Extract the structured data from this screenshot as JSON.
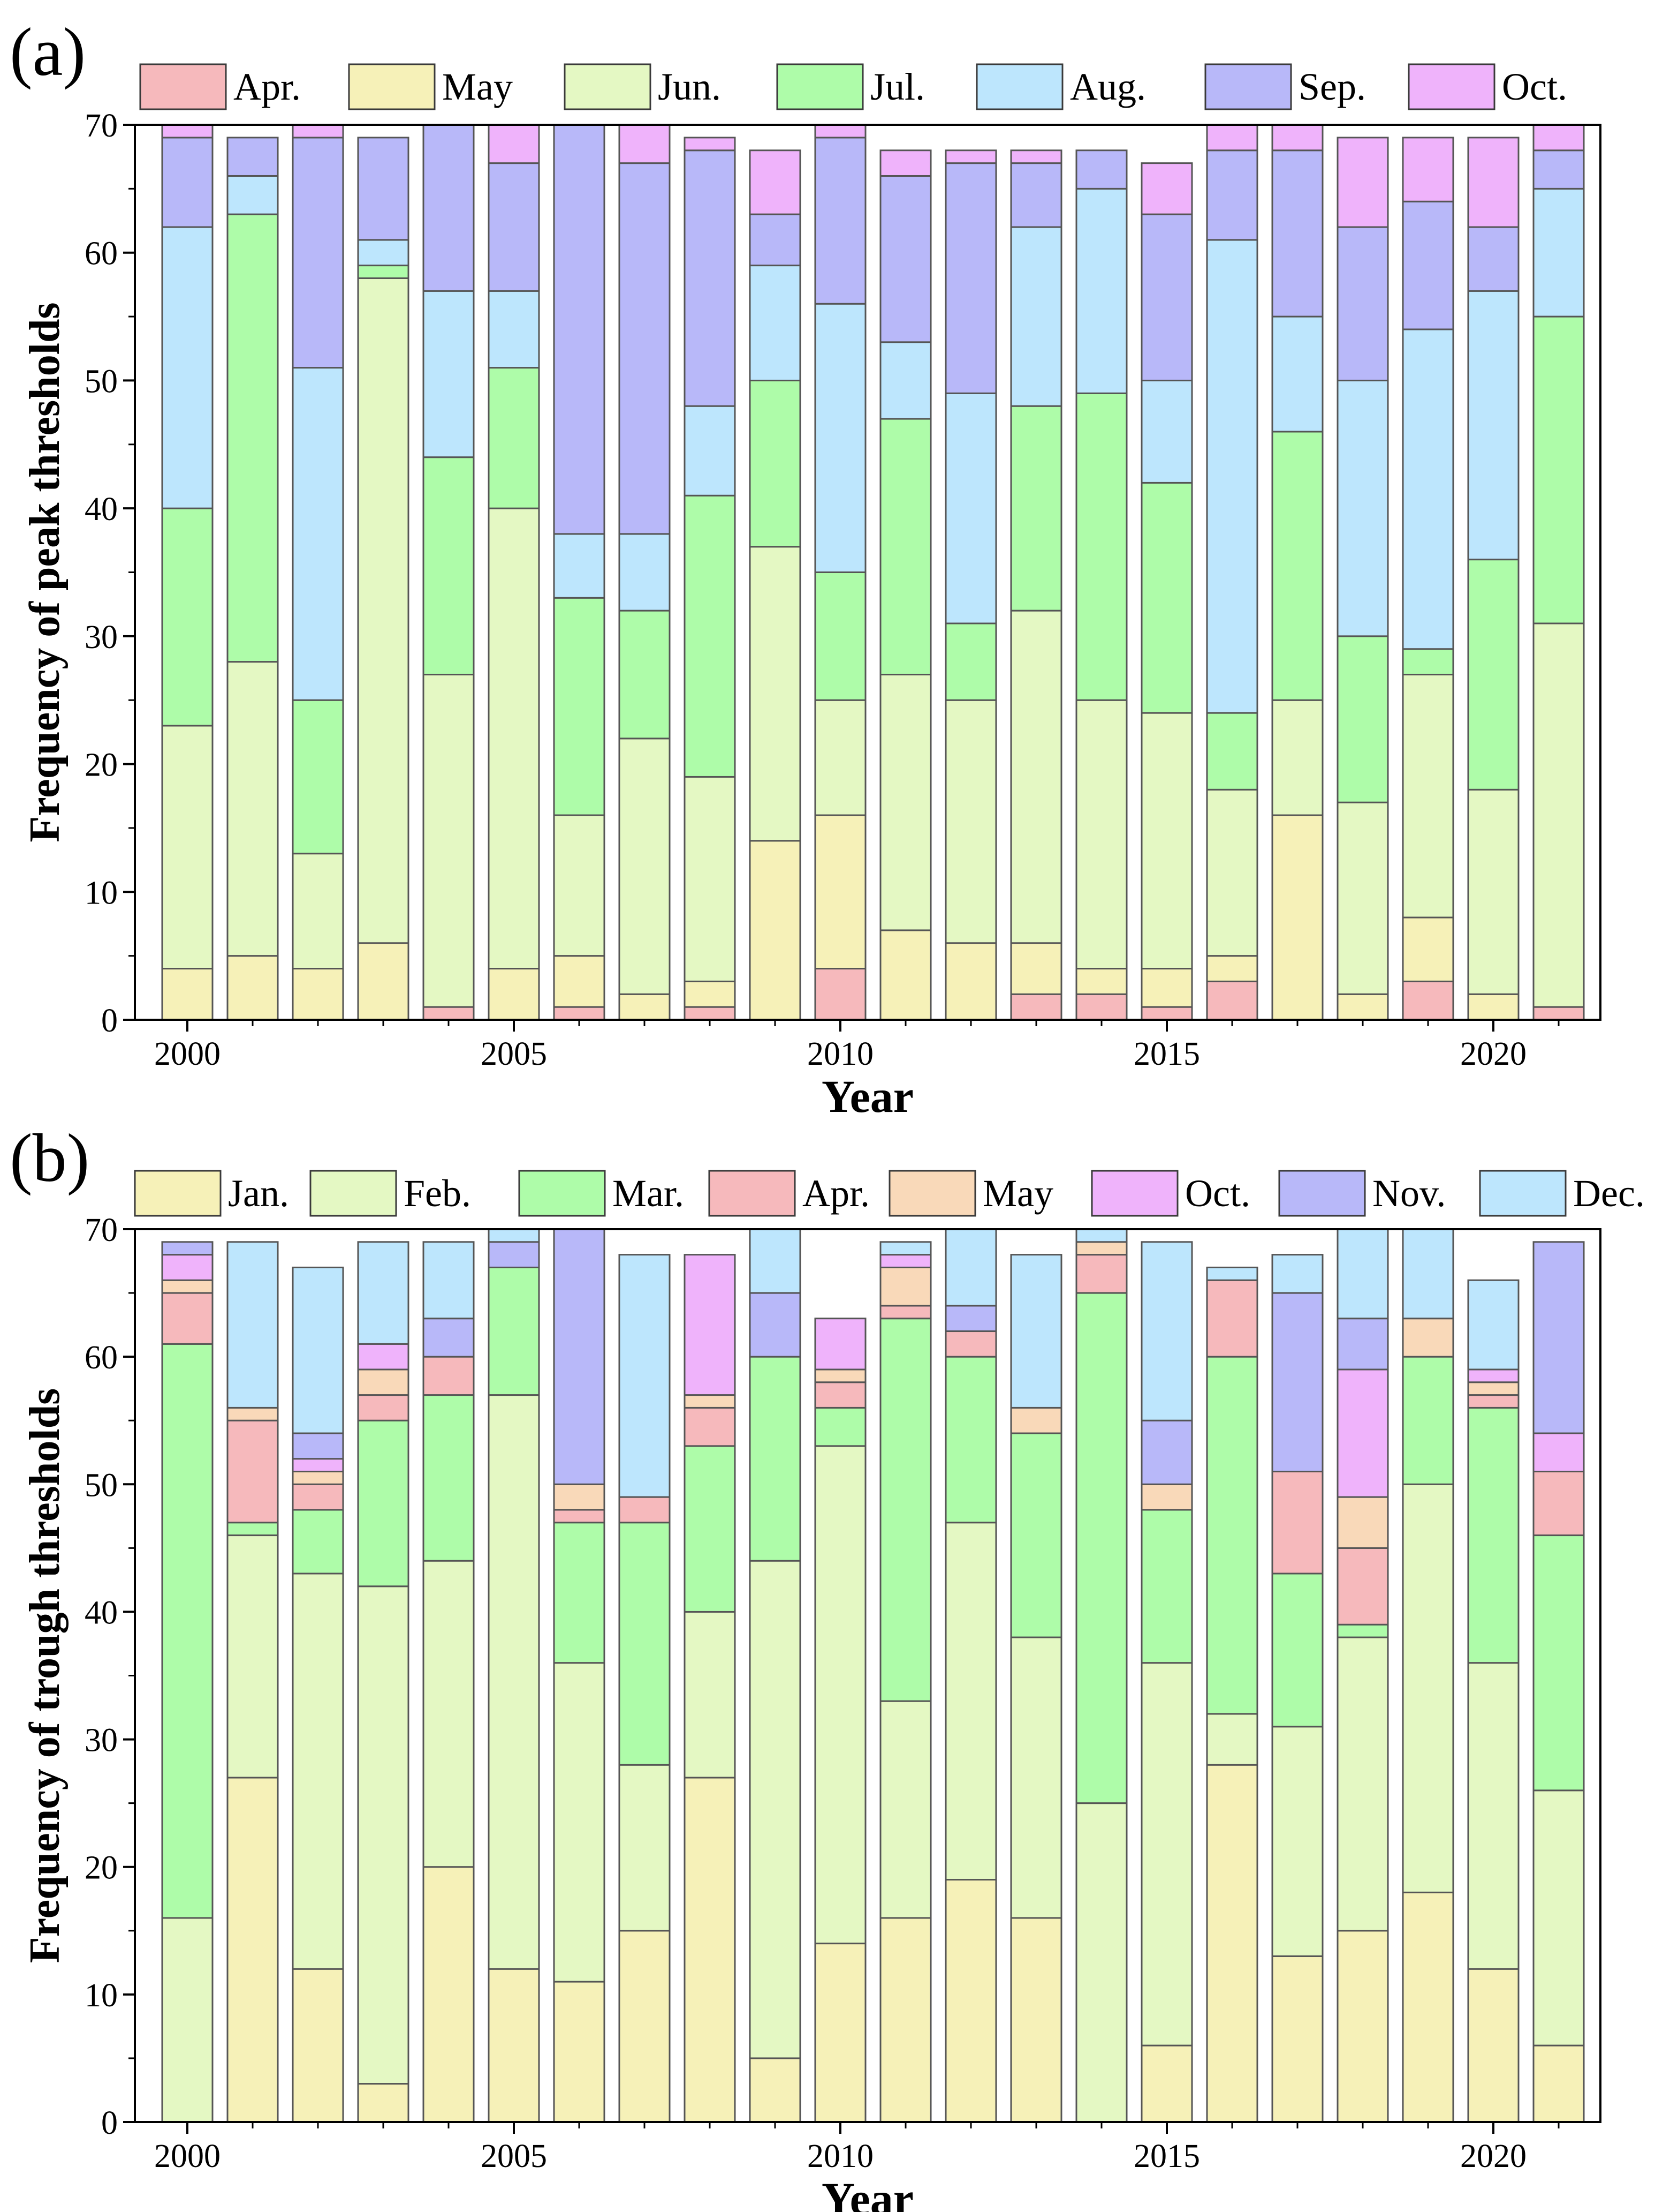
{
  "chart_data": [
    {
      "panel_label": "(a)",
      "type": "bar",
      "stacked": true,
      "xlabel": "Year",
      "ylabel": "Frequency of peak thresholds",
      "ylim": [
        0,
        70
      ],
      "yticks": [
        "0",
        "10",
        "20",
        "30",
        "40",
        "50",
        "60",
        "70"
      ],
      "xtick_labels": [
        "2000",
        "2005",
        "2010",
        "2015",
        "2020"
      ],
      "categories": [
        "2000",
        "2001",
        "2002",
        "2003",
        "2004",
        "2005",
        "2006",
        "2007",
        "2008",
        "2009",
        "2010",
        "2011",
        "2012",
        "2013",
        "2014",
        "2015",
        "2016",
        "2017",
        "2018",
        "2019",
        "2020",
        "2021"
      ],
      "legend_position": "top",
      "series": [
        {
          "name": "Apr.",
          "color": "#f6b9bc",
          "values": [
            0,
            0,
            0,
            0,
            1,
            0,
            1,
            0,
            1,
            0,
            4,
            0,
            0,
            2,
            2,
            1,
            3,
            0,
            0,
            3,
            0,
            1
          ]
        },
        {
          "name": "May",
          "color": "#f6f1b8",
          "values": [
            4,
            5,
            4,
            6,
            0,
            4,
            4,
            2,
            2,
            14,
            12,
            7,
            6,
            4,
            2,
            3,
            2,
            16,
            2,
            5,
            2,
            0
          ]
        },
        {
          "name": "Jun.",
          "color": "#e4f8c3",
          "values": [
            19,
            23,
            9,
            52,
            26,
            36,
            11,
            20,
            16,
            23,
            9,
            20,
            19,
            26,
            21,
            20,
            13,
            9,
            15,
            19,
            16,
            30
          ]
        },
        {
          "name": "Jul.",
          "color": "#aefca9",
          "values": [
            17,
            35,
            12,
            1,
            17,
            11,
            17,
            10,
            22,
            13,
            10,
            20,
            6,
            16,
            24,
            18,
            6,
            21,
            13,
            2,
            18,
            24
          ]
        },
        {
          "name": "Aug.",
          "color": "#bde6fd",
          "values": [
            22,
            3,
            26,
            2,
            13,
            6,
            5,
            6,
            7,
            9,
            21,
            6,
            18,
            14,
            16,
            8,
            37,
            9,
            20,
            25,
            21,
            10
          ]
        },
        {
          "name": "Sep.",
          "color": "#b8b8f9",
          "values": [
            7,
            3,
            18,
            8,
            13,
            10,
            32,
            29,
            20,
            4,
            13,
            13,
            18,
            5,
            3,
            13,
            7,
            13,
            12,
            10,
            5,
            3
          ]
        },
        {
          "name": "Oct.",
          "color": "#efb3fb",
          "values": [
            1,
            0,
            1,
            0,
            0,
            3,
            0,
            3,
            1,
            5,
            1,
            2,
            1,
            1,
            0,
            4,
            2,
            2,
            7,
            5,
            7,
            2
          ]
        }
      ]
    },
    {
      "panel_label": "(b)",
      "type": "bar",
      "stacked": true,
      "xlabel": "Year",
      "ylabel": "Frequency of trough thresholds",
      "ylim": [
        0,
        70
      ],
      "yticks": [
        "0",
        "10",
        "20",
        "30",
        "40",
        "50",
        "60",
        "70"
      ],
      "xtick_labels": [
        "2000",
        "2005",
        "2010",
        "2015",
        "2020"
      ],
      "categories": [
        "2000",
        "2001",
        "2002",
        "2003",
        "2004",
        "2005",
        "2006",
        "2007",
        "2008",
        "2009",
        "2010",
        "2011",
        "2012",
        "2013",
        "2014",
        "2015",
        "2016",
        "2017",
        "2018",
        "2019",
        "2020",
        "2021"
      ],
      "legend_position": "top",
      "series": [
        {
          "name": "Jan.",
          "color": "#f6f1b8",
          "values": [
            0,
            27,
            12,
            3,
            20,
            12,
            11,
            15,
            27,
            5,
            14,
            16,
            19,
            16,
            0,
            6,
            28,
            13,
            15,
            18,
            12,
            6
          ]
        },
        {
          "name": "Feb.",
          "color": "#e4f8c3",
          "values": [
            16,
            19,
            31,
            39,
            24,
            45,
            25,
            13,
            13,
            39,
            39,
            17,
            28,
            22,
            25,
            30,
            4,
            18,
            23,
            32,
            24,
            20
          ]
        },
        {
          "name": "Mar.",
          "color": "#aefca9",
          "values": [
            45,
            1,
            5,
            13,
            13,
            10,
            11,
            19,
            13,
            16,
            3,
            30,
            13,
            16,
            40,
            12,
            28,
            12,
            1,
            10,
            20,
            20
          ]
        },
        {
          "name": "Apr.",
          "color": "#f6b9bc",
          "values": [
            4,
            8,
            2,
            2,
            3,
            0,
            1,
            2,
            3,
            0,
            2,
            1,
            2,
            0,
            3,
            0,
            6,
            8,
            6,
            0,
            1,
            5
          ]
        },
        {
          "name": "May",
          "color": "#f9d9b9",
          "values": [
            1,
            1,
            1,
            2,
            0,
            0,
            2,
            0,
            1,
            0,
            1,
            3,
            0,
            2,
            1,
            2,
            0,
            0,
            4,
            3,
            1,
            0
          ]
        },
        {
          "name": "Oct.",
          "color": "#efb3fb",
          "values": [
            2,
            0,
            1,
            2,
            0,
            0,
            0,
            0,
            11,
            0,
            4,
            1,
            0,
            0,
            0,
            0,
            0,
            0,
            10,
            0,
            1,
            3
          ]
        },
        {
          "name": "Nov.",
          "color": "#b8b8f9",
          "values": [
            1,
            0,
            2,
            0,
            3,
            2,
            20,
            0,
            0,
            5,
            0,
            0,
            2,
            0,
            0,
            5,
            0,
            14,
            4,
            0,
            0,
            15
          ]
        },
        {
          "name": "Dec.",
          "color": "#bde6fd",
          "values": [
            0,
            13,
            13,
            8,
            6,
            1,
            0,
            19,
            0,
            5,
            0,
            1,
            6,
            12,
            1,
            14,
            1,
            3,
            7,
            7,
            7,
            0
          ]
        }
      ]
    }
  ]
}
